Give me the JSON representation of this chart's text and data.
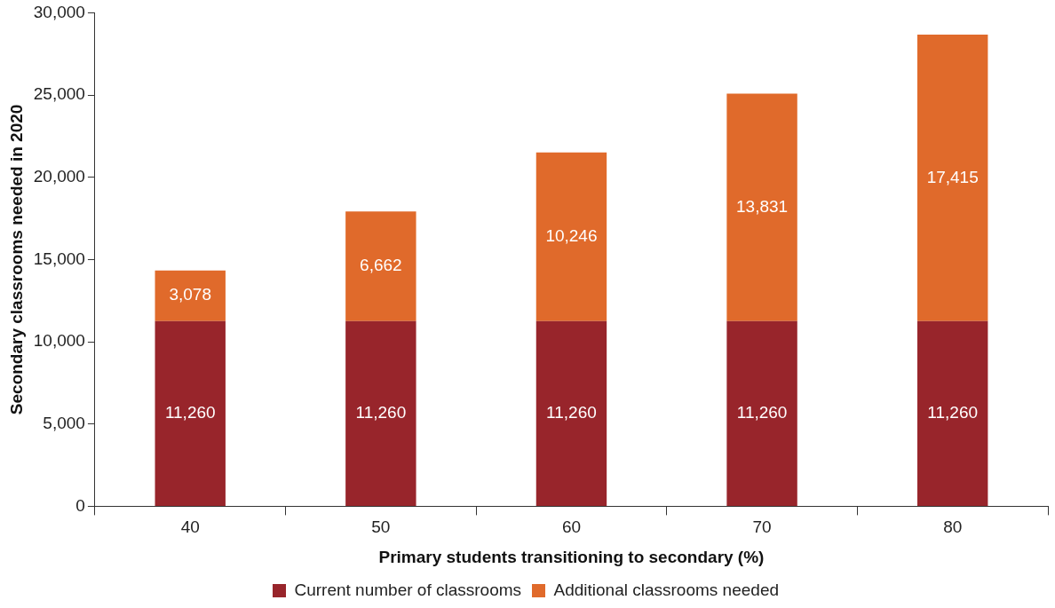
{
  "chart_data": {
    "type": "bar",
    "stacked": true,
    "xlabel": "Primary students transitioning to secondary (%)",
    "ylabel": "Secondary classrooms needed in 2020",
    "categories": [
      "40",
      "50",
      "60",
      "70",
      "80"
    ],
    "series": [
      {
        "name": "Current number of classrooms",
        "color": "#98252b",
        "values": [
          11260,
          11260,
          11260,
          11260,
          11260
        ],
        "value_labels": [
          "11,260",
          "11,260",
          "11,260",
          "11,260",
          "11,260"
        ]
      },
      {
        "name": "Additional classrooms needed",
        "color": "#e06a2b",
        "values": [
          3078,
          6662,
          10246,
          13831,
          17415
        ],
        "value_labels": [
          "3,078",
          "6,662",
          "10,246",
          "13,831",
          "17,415"
        ]
      }
    ],
    "ylim": [
      0,
      30000
    ],
    "yticks": [
      {
        "value": 0,
        "label": "0"
      },
      {
        "value": 5000,
        "label": "5,000"
      },
      {
        "value": 10000,
        "label": "10,000"
      },
      {
        "value": 15000,
        "label": "15,000"
      },
      {
        "value": 20000,
        "label": "20,000"
      },
      {
        "value": 25000,
        "label": "25,000"
      },
      {
        "value": 30000,
        "label": "30,000"
      }
    ],
    "grid": false,
    "legend": "bottom"
  }
}
